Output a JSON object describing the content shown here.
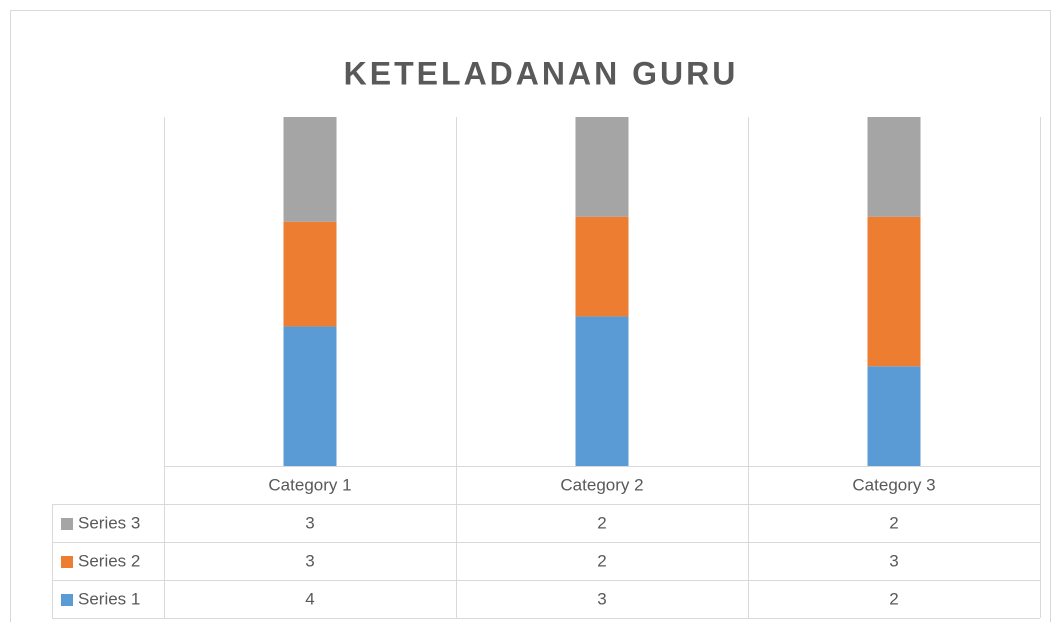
{
  "chart_data": {
    "type": "bar",
    "stacked": "percent",
    "title": "KETELADANAN GURU",
    "categories": [
      "Category 1",
      "Category 2",
      "Category 3"
    ],
    "series": [
      {
        "name": "Series 1",
        "color": "#5b9bd5",
        "values": [
          4,
          3,
          2
        ]
      },
      {
        "name": "Series 2",
        "color": "#ed7d31",
        "values": [
          3,
          2,
          3
        ]
      },
      {
        "name": "Series 3",
        "color": "#a5a5a5",
        "values": [
          3,
          2,
          2
        ]
      }
    ],
    "data_table": true
  }
}
